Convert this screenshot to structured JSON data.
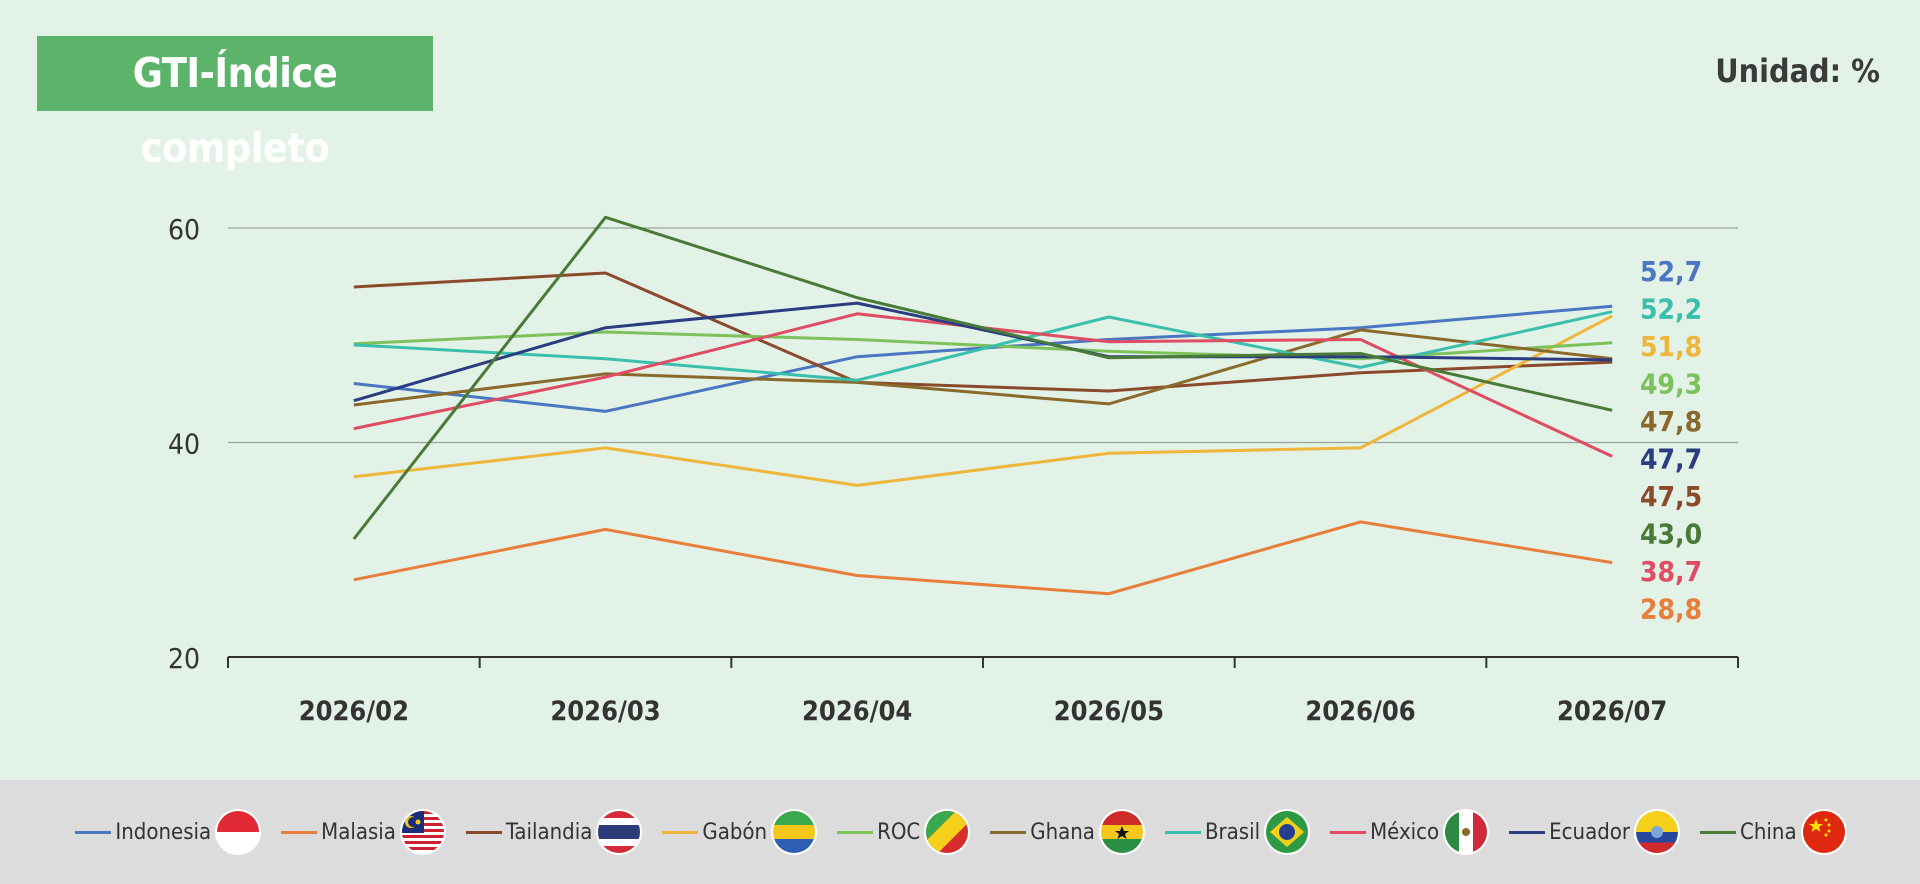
{
  "header": {
    "title": "GTI-Índice completo",
    "unit": "Unidad: %"
  },
  "chart_data": {
    "type": "line",
    "title": "GTI-Índice completo",
    "unit": "Unidad: %",
    "categories": [
      "2026/02",
      "2026/03",
      "2026/04",
      "2026/05",
      "2026/06",
      "2026/07"
    ],
    "y_ticks": [
      "20",
      "40",
      "60"
    ],
    "ylim": [
      20,
      60
    ],
    "grid": "horizontal",
    "legend_placement": "bottom",
    "series": [
      {
        "name": "Indonesia",
        "color": "#4a76c2",
        "flag": "indonesia-flag-icon",
        "values": [
          45.5,
          42.9,
          48.0,
          49.6,
          50.7,
          52.7
        ],
        "end_label": "52,7"
      },
      {
        "name": "Malasia",
        "color": "#e87e3c",
        "flag": "malaysia-flag-icon",
        "values": [
          27.2,
          31.9,
          27.6,
          25.9,
          32.6,
          28.8
        ],
        "end_label": "28,8"
      },
      {
        "name": "Tailandia",
        "color": "#8b4a2b",
        "flag": "thailand-flag-icon",
        "values": [
          54.5,
          55.8,
          45.6,
          44.8,
          46.5,
          47.5
        ],
        "end_label": "47,5"
      },
      {
        "name": "Gabón",
        "color": "#efb63c",
        "flag": "gabon-flag-icon",
        "values": [
          36.8,
          39.5,
          36.0,
          39.0,
          39.5,
          51.8
        ],
        "end_label": "51,8"
      },
      {
        "name": "ROC",
        "color": "#7cc15a",
        "flag": "congo-flag-icon",
        "values": [
          49.2,
          50.3,
          49.6,
          48.5,
          47.8,
          49.3
        ],
        "end_label": "49,3"
      },
      {
        "name": "Ghana",
        "color": "#8a6a2c",
        "flag": "ghana-flag-icon",
        "values": [
          43.5,
          46.4,
          45.6,
          43.6,
          50.5,
          47.8
        ],
        "end_label": "47,8"
      },
      {
        "name": "Brasil",
        "color": "#3bbfad",
        "flag": "brazil-flag-icon",
        "values": [
          49.1,
          47.8,
          45.8,
          51.7,
          47.0,
          52.2
        ],
        "end_label": "52,2"
      },
      {
        "name": "México",
        "color": "#df4c64",
        "flag": "mexico-flag-icon",
        "values": [
          41.3,
          46.1,
          52.0,
          49.4,
          49.6,
          38.7
        ],
        "end_label": "38,7"
      },
      {
        "name": "Ecuador",
        "color": "#2b3c80",
        "flag": "ecuador-flag-icon",
        "values": [
          43.9,
          50.7,
          53.0,
          48.0,
          48.0,
          47.7
        ],
        "end_label": "47,7"
      },
      {
        "name": "China",
        "color": "#4a7a38",
        "flag": "china-flag-icon",
        "values": [
          31.0,
          61.0,
          53.5,
          47.9,
          48.3,
          43.0
        ],
        "end_label": "43,0"
      }
    ],
    "end_label_order": [
      "Indonesia",
      "Brasil",
      "Gabón",
      "ROC",
      "Ghana",
      "Ecuador",
      "Tailandia",
      "China",
      "México",
      "Malasia"
    ]
  }
}
